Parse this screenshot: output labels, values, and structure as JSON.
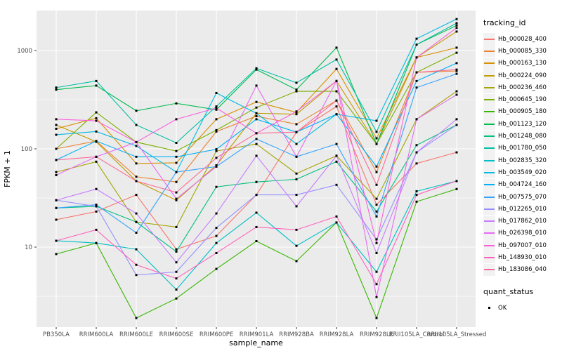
{
  "figure": {
    "xlabel": "sample_name",
    "ylabel": "FPKM + 1",
    "panel_background": "#EBEBEB",
    "grid_color": "#FFFFFF",
    "tick_color": "#333333",
    "tick_label_color": "#4D4D4D"
  },
  "legend": {
    "tracking_title": "tracking_id",
    "quant_title": "quant_status",
    "quant_items": [
      {
        "label": "OK",
        "shape": "filled-square",
        "color": "#000000"
      }
    ]
  },
  "chart_data": {
    "type": "line",
    "xlabel": "sample_name",
    "ylabel": "FPKM + 1",
    "yscale": "log10",
    "yticks": [
      10,
      100,
      1000
    ],
    "ytick_labels": [
      "10",
      "100",
      "1000"
    ],
    "minor_grid_values": [
      3.16,
      31.6,
      316
    ],
    "ylim_approx": [
      1.5,
      2600
    ],
    "grid": true,
    "legend_position": "right",
    "marker": "small-black-square",
    "x_categories": [
      "PB350LA",
      "RRIM600LA",
      "RRIM600LE",
      "RRIM600SE",
      "RRIM600PE",
      "RRIM901LA",
      "RRIM928BA",
      "RRIM928LA",
      "RRIM928LE",
      "RRII105LA_Control",
      "RRII105LA_Stressed"
    ],
    "series": [
      {
        "name": "Hb_000028_400",
        "color": "#F8766D",
        "values": [
          19,
          23,
          34,
          9.5,
          13,
          34,
          148,
          270,
          27,
          71,
          92
        ]
      },
      {
        "name": "Hb_000085_330",
        "color": "#EA8331",
        "values": [
          100,
          120,
          52,
          46,
          150,
          215,
          178,
          310,
          58,
          600,
          620
        ]
      },
      {
        "name": "Hb_000163_130",
        "color": "#D89000",
        "values": [
          160,
          205,
          71,
          72,
          200,
          300,
          235,
          650,
          128,
          850,
          1070
        ]
      },
      {
        "name": "Hb_000224_090",
        "color": "#C09B00",
        "values": [
          175,
          118,
          47,
          30,
          68,
          230,
          225,
          490,
          112,
          850,
          1560
        ]
      },
      {
        "name": "Hb_000236_460",
        "color": "#A3A500",
        "values": [
          58,
          74,
          18,
          16,
          95,
          112,
          56,
          85,
          31,
          200,
          385
        ]
      },
      {
        "name": "Hb_000645_190",
        "color": "#7CAE00",
        "values": [
          100,
          235,
          117,
          95,
          155,
          263,
          385,
          385,
          112,
          600,
          950
        ]
      },
      {
        "name": "Hb_000905_180",
        "color": "#39B600",
        "values": [
          8.5,
          11,
          1.9,
          3,
          6,
          11.5,
          7.2,
          17.8,
          1.9,
          29,
          39
        ]
      },
      {
        "name": "Hb_001123_120",
        "color": "#00BB4E",
        "values": [
          400,
          440,
          244,
          290,
          250,
          640,
          400,
          1070,
          112,
          1150,
          1800
        ]
      },
      {
        "name": "Hb_001248_080",
        "color": "#00BF7D",
        "values": [
          25,
          26,
          18,
          9,
          41,
          46,
          49,
          74,
          23,
          109,
          175
        ]
      },
      {
        "name": "Hb_001780_050",
        "color": "#00C1A3",
        "values": [
          420,
          490,
          175,
          115,
          270,
          660,
          470,
          810,
          149,
          1150,
          1900
        ]
      },
      {
        "name": "Hb_002835_320",
        "color": "#00BFC4",
        "values": [
          11.6,
          11,
          9.5,
          3.7,
          11,
          22.4,
          10.3,
          17.8,
          5.6,
          37,
          47
        ]
      },
      {
        "name": "Hb_003549_020",
        "color": "#00BAE0",
        "values": [
          139,
          150,
          107,
          58,
          370,
          230,
          112,
          225,
          193,
          1320,
          2090
        ]
      },
      {
        "name": "Hb_004724_160",
        "color": "#00B0F6",
        "values": [
          77,
          120,
          83,
          83,
          99,
          200,
          148,
          225,
          66,
          490,
          745
        ]
      },
      {
        "name": "Hb_007575_070",
        "color": "#35A2FF",
        "values": [
          25,
          27,
          14,
          58,
          66,
          126,
          83,
          112,
          20.5,
          420,
          580
        ]
      },
      {
        "name": "Hb_012265_010",
        "color": "#9590FF",
        "values": [
          30,
          26,
          5.2,
          5.6,
          15.7,
          34,
          34,
          43,
          12,
          92,
          175
        ]
      },
      {
        "name": "Hb_017862_010",
        "color": "#C77CFF",
        "values": [
          30,
          39,
          22,
          7,
          22,
          85,
          26,
          85,
          8.7,
          92,
          200
        ]
      },
      {
        "name": "Hb_026398_010",
        "color": "#E76BF3",
        "values": [
          54,
          83,
          117,
          31,
          66,
          440,
          83,
          490,
          3.1,
          200,
          355
        ]
      },
      {
        "name": "Hb_097007_010",
        "color": "#FA62DB",
        "values": [
          200,
          193,
          117,
          200,
          260,
          144,
          240,
          490,
          11,
          850,
          1700
        ]
      },
      {
        "name": "Hb_148930_010",
        "color": "#FF62BC",
        "values": [
          11.6,
          15,
          6.6,
          4.8,
          8.7,
          16,
          15,
          20.5,
          4.2,
          34,
          47
        ]
      },
      {
        "name": "Hb_183086_040",
        "color": "#FF6A98",
        "values": [
          77,
          83,
          47,
          36,
          81,
          144,
          148,
          310,
          43,
          600,
          640
        ]
      }
    ]
  }
}
